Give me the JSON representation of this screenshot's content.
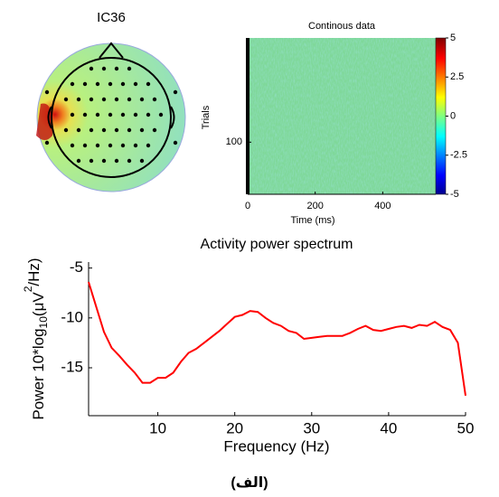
{
  "chart_data": [
    {
      "type": "topomap",
      "title": "IC36"
    },
    {
      "type": "heatmap",
      "title": "Continous data",
      "xlabel": "Time (ms)",
      "ylabel": "Trials",
      "xlim": [
        0,
        557
      ],
      "xticks": [
        0,
        200,
        400
      ],
      "ylim": [
        150,
        0
      ],
      "yticks": [
        100
      ],
      "clim": [
        -5,
        5
      ],
      "cticks": [
        5,
        2.5,
        0,
        -2.5,
        -5
      ]
    },
    {
      "type": "line",
      "title": "Activity power spectrum",
      "xlabel": "Frequency (Hz)",
      "ylabel_parts": [
        "Power 10*log",
        "10",
        "(μV",
        "2",
        "/Hz)"
      ],
      "color": "#ff0000",
      "x": [
        1,
        2,
        3,
        4,
        5,
        6,
        7,
        8,
        9,
        10,
        11,
        12,
        13,
        14,
        15,
        16,
        17,
        18,
        19,
        20,
        21,
        22,
        23,
        24,
        25,
        26,
        27,
        28,
        29,
        30,
        31,
        32,
        33,
        34,
        35,
        36,
        37,
        38,
        39,
        40,
        41,
        42,
        43,
        44,
        45,
        46,
        47,
        48,
        49,
        50
      ],
      "values": [
        -6.4,
        -8.9,
        -11.4,
        -13,
        -13.8,
        -14.7,
        -15.5,
        -16.5,
        -16.5,
        -16,
        -16,
        -15.5,
        -14.4,
        -13.5,
        -13.1,
        -12.5,
        -11.9,
        -11.3,
        -10.6,
        -9.9,
        -9.7,
        -9.3,
        -9.4,
        -10,
        -10.5,
        -10.8,
        -11.3,
        -11.5,
        -12.1,
        -12,
        -11.9,
        -11.8,
        -11.8,
        -11.8,
        -11.5,
        -11.1,
        -10.8,
        -11.2,
        -11.3,
        -11.1,
        -10.9,
        -10.8,
        -11,
        -10.7,
        -10.8,
        -10.4,
        -10.9,
        -11.2,
        -12.5,
        -17.8
      ],
      "xlim": [
        1,
        50
      ],
      "xticks": [
        10,
        20,
        30,
        40,
        50
      ],
      "ylim": [
        -19.8,
        -4.4
      ],
      "yticks": [
        -5,
        -10,
        -15
      ]
    }
  ],
  "caption": "(الف)"
}
